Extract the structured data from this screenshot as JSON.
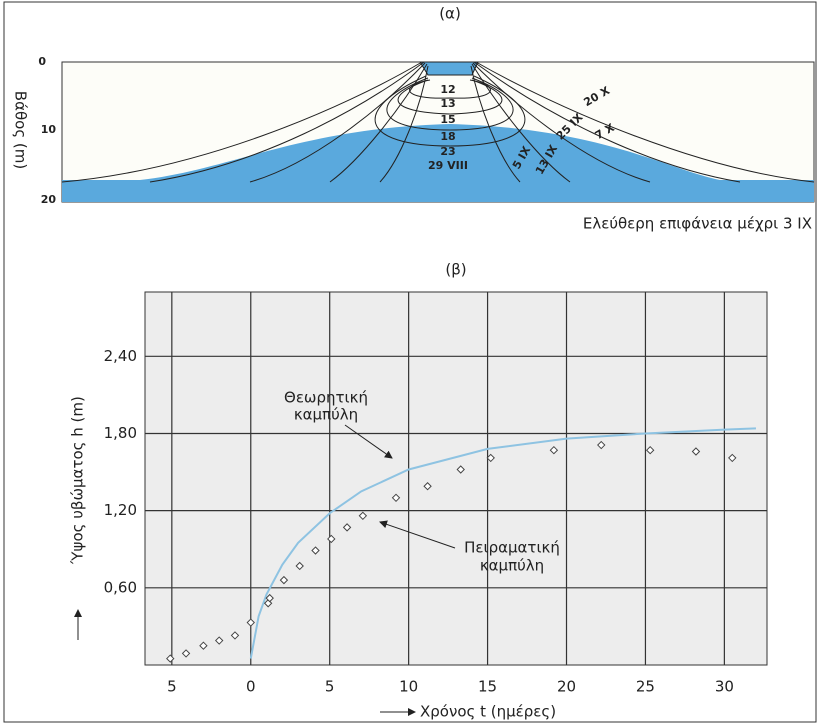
{
  "panel_a": {
    "title": "(α)",
    "y_axis_label": "Βάθος (m)",
    "y_ticks": [
      "0",
      "10",
      "20"
    ],
    "contour_labels": [
      "12",
      "13",
      "15",
      "18",
      "23",
      "29 VIII",
      "5 IX",
      "13 IX",
      "20 X",
      "25 IX",
      "7 X"
    ],
    "caption": "Ελεύθερη επιφάνεια μέχρι 3 IX"
  },
  "chart_data": {
    "type": "scatter",
    "title": "(β)",
    "x_label": "Χρόνος  t  (ημέρες)",
    "y_label": "Ύψος υβώματος  h  (m)",
    "xlim": [
      -6.7,
      32.7
    ],
    "ylim": [
      0,
      2.9
    ],
    "xticks": [
      {
        "value": -5,
        "label": "5"
      },
      0,
      5,
      10,
      15,
      20,
      25,
      30
    ],
    "yticks": [
      {
        "value": 0.6,
        "label": "0,60"
      },
      {
        "value": 1.2,
        "label": "1,20"
      },
      {
        "value": 1.8,
        "label": "1,80"
      },
      {
        "value": 2.4,
        "label": "2,40"
      }
    ],
    "grid": true,
    "annotations": [
      [
        "Θεωρητική",
        "καμπύλη"
      ],
      [
        "Πειραματική",
        "καμπύλη"
      ]
    ],
    "series": [
      {
        "type": "line",
        "color": "#8ec3e2",
        "x": [
          0,
          0.5,
          1,
          2,
          3,
          5,
          7,
          10,
          15,
          20,
          25,
          30,
          32
        ],
        "values": [
          0.05,
          0.38,
          0.55,
          0.78,
          0.95,
          1.18,
          1.35,
          1.52,
          1.68,
          1.76,
          1.8,
          1.83,
          1.84
        ]
      },
      {
        "type": "scatter",
        "color": "#444444",
        "x": [
          -5.1,
          -4.1,
          -3,
          -2,
          -1,
          0,
          1.1,
          1.2,
          2.1,
          3.1,
          4.1,
          5.1,
          6.1,
          7.1,
          9.2,
          11.2,
          13.3,
          15.2,
          19.2,
          22.2,
          25.3,
          28.2,
          30.5
        ],
        "values": [
          0.05,
          0.09,
          0.15,
          0.19,
          0.23,
          0.33,
          0.48,
          0.52,
          0.66,
          0.77,
          0.89,
          0.98,
          1.07,
          1.16,
          1.3,
          1.39,
          1.52,
          1.61,
          1.67,
          1.71,
          1.67,
          1.66,
          1.61
        ]
      }
    ]
  }
}
